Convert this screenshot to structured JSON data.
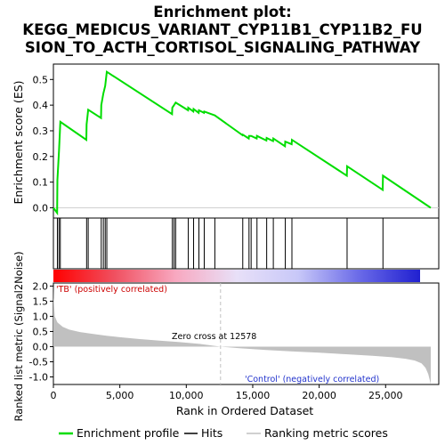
{
  "chart_data": {
    "type": "line",
    "title_lines": [
      "Enrichment plot:",
      "KEGG_MEDICUS_VARIANT_CYP11B1_CYP11B2_FU",
      "SION_TO_ACTH_CORTISOL_SIGNALING_PATHWAY"
    ],
    "xlabel": "Rank in Ordered Dataset",
    "ylabel_top": "Enrichment score (ES)",
    "ylabel_bottom": "Ranked list metric (Signal2Noise)",
    "xlim": [
      0,
      29000
    ],
    "ylim_es": [
      -0.04,
      0.56
    ],
    "ylim_metric": [
      -1.25,
      2.1
    ],
    "x_ticks": [
      0,
      5000,
      10000,
      15000,
      20000,
      25000
    ],
    "x_tick_labels": [
      "0",
      "5,000",
      "10,000",
      "15,000",
      "20,000",
      "25,000"
    ],
    "es_ticks": [
      0.0,
      0.1,
      0.2,
      0.3,
      0.4,
      0.5
    ],
    "es_tick_labels": [
      "0.0",
      "0.1",
      "0.2",
      "0.3",
      "0.4",
      "0.5"
    ],
    "metric_ticks": [
      2.0,
      1.5,
      1.0,
      0.5,
      0.0,
      -0.5,
      -1.0
    ],
    "metric_tick_labels": [
      "2.0",
      "1.5",
      "1.0",
      "0.5",
      "0.0",
      "-0.5",
      "-1.0"
    ],
    "total_rank": 28400,
    "zero_cross": 12578,
    "zero_cross_label": "Zero cross at 12578",
    "pos_label": "'TB' (positively correlated)",
    "neg_label": "'Control' (negatively correlated)",
    "hits": [
      300,
      420,
      520,
      2500,
      2620,
      3600,
      3760,
      3900,
      4020,
      8950,
      9080,
      9200,
      10150,
      10550,
      10950,
      11350,
      12150,
      14250,
      14720,
      14880,
      15320,
      16050,
      16550,
      17450,
      17950,
      22100,
      24800
    ],
    "es_points": [
      [
        0,
        0.0
      ],
      [
        280,
        -0.02
      ],
      [
        300,
        0.108
      ],
      [
        420,
        0.222
      ],
      [
        520,
        0.335
      ],
      [
        2480,
        0.265
      ],
      [
        2500,
        0.325
      ],
      [
        2620,
        0.382
      ],
      [
        3580,
        0.35
      ],
      [
        3600,
        0.4
      ],
      [
        3760,
        0.445
      ],
      [
        3900,
        0.475
      ],
      [
        4020,
        0.53
      ],
      [
        8930,
        0.365
      ],
      [
        8950,
        0.39
      ],
      [
        9080,
        0.4
      ],
      [
        9200,
        0.41
      ],
      [
        10130,
        0.38
      ],
      [
        10150,
        0.39
      ],
      [
        10530,
        0.375
      ],
      [
        10550,
        0.385
      ],
      [
        10930,
        0.37
      ],
      [
        10950,
        0.38
      ],
      [
        11330,
        0.37
      ],
      [
        11350,
        0.375
      ],
      [
        12150,
        0.36
      ],
      [
        14230,
        0.283
      ],
      [
        14250,
        0.285
      ],
      [
        14700,
        0.27
      ],
      [
        14720,
        0.28
      ],
      [
        14880,
        0.28
      ],
      [
        15300,
        0.27
      ],
      [
        15320,
        0.28
      ],
      [
        16030,
        0.262
      ],
      [
        16050,
        0.272
      ],
      [
        16530,
        0.26
      ],
      [
        16550,
        0.27
      ],
      [
        17430,
        0.24
      ],
      [
        17450,
        0.258
      ],
      [
        17930,
        0.248
      ],
      [
        17950,
        0.265
      ],
      [
        22080,
        0.125
      ],
      [
        22100,
        0.162
      ],
      [
        24780,
        0.07
      ],
      [
        24800,
        0.125
      ],
      [
        28400,
        0.0
      ]
    ],
    "metric_profile": [
      [
        0,
        2.05
      ],
      [
        20,
        1.6
      ],
      [
        100,
        1.0
      ],
      [
        300,
        0.8
      ],
      [
        700,
        0.65
      ],
      [
        1200,
        0.56
      ],
      [
        2000,
        0.48
      ],
      [
        3000,
        0.42
      ],
      [
        4000,
        0.36
      ],
      [
        5000,
        0.31
      ],
      [
        6500,
        0.25
      ],
      [
        8000,
        0.2
      ],
      [
        9500,
        0.15
      ],
      [
        11000,
        0.09
      ],
      [
        12578,
        0.0
      ],
      [
        14000,
        -0.05
      ],
      [
        16000,
        -0.11
      ],
      [
        18000,
        -0.16
      ],
      [
        20000,
        -0.2
      ],
      [
        22000,
        -0.25
      ],
      [
        24000,
        -0.3
      ],
      [
        25500,
        -0.35
      ],
      [
        26500,
        -0.4
      ],
      [
        27200,
        -0.46
      ],
      [
        27700,
        -0.55
      ],
      [
        28000,
        -0.7
      ],
      [
        28200,
        -0.9
      ],
      [
        28350,
        -1.15
      ],
      [
        28400,
        -1.25
      ]
    ],
    "legend": [
      {
        "label": "Enrichment profile",
        "color": "#00dd00"
      },
      {
        "label": "Hits",
        "color": "#000000"
      },
      {
        "label": "Ranking metric scores",
        "color": "#c0c0c0"
      }
    ],
    "colors": {
      "es_line": "#00dd00",
      "hit": "#000000",
      "metric_fill": "#c0c0c0",
      "zero_line": "#c0c0c0",
      "pos_text": "#cc0000",
      "neg_text": "#2233cc",
      "heat_gradient": [
        "#ff0000",
        "#f05060",
        "#f8a8c0",
        "#e8e0f8",
        "#c8c8f8",
        "#6a6ae8",
        "#2020d0"
      ]
    }
  }
}
